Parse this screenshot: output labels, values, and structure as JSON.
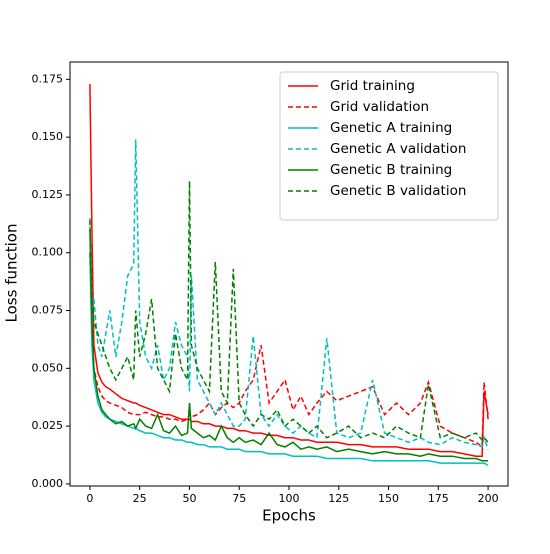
{
  "chart_data": {
    "type": "line",
    "x_label": "Epochs",
    "y_label": "Loss function",
    "x": [
      0,
      1,
      2,
      4,
      6,
      8,
      10,
      13,
      16,
      19,
      22,
      23,
      25,
      28,
      31,
      34,
      37,
      40,
      43,
      46,
      49,
      50,
      51,
      54,
      57,
      60,
      63,
      66,
      69,
      72,
      75,
      78,
      82,
      86,
      90,
      94,
      98,
      102,
      106,
      110,
      114,
      119,
      124,
      130,
      136,
      142,
      148,
      154,
      160,
      166,
      170,
      176,
      182,
      188,
      194,
      197,
      198,
      200
    ],
    "xlim": [
      -10,
      210
    ],
    "xticks": [
      0,
      25,
      50,
      75,
      100,
      125,
      150,
      175,
      200
    ],
    "ylim": [
      -0.0009,
      0.1825
    ],
    "yticks": [
      {
        "value": 0,
        "label": "0.000"
      },
      {
        "value": 0.025,
        "label": "0.025"
      },
      {
        "value": 0.05,
        "label": "0.050"
      },
      {
        "value": 0.075,
        "label": "0.075"
      },
      {
        "value": 0.1,
        "label": "0.100"
      },
      {
        "value": 0.125,
        "label": "0.125"
      },
      {
        "value": 0.15,
        "label": "0.150"
      },
      {
        "value": 0.175,
        "label": "0.175"
      }
    ],
    "legend": "upper right",
    "series": [
      {
        "name": "Grid training",
        "color": "#ff0000",
        "linestyle": "solid",
        "values": [
          0.173,
          0.11,
          0.06,
          0.048,
          0.044,
          0.042,
          0.041,
          0.039,
          0.037,
          0.036,
          0.035,
          0.035,
          0.034,
          0.033,
          0.032,
          0.031,
          0.03,
          0.03,
          0.029,
          0.028,
          0.028,
          0.028,
          0.027,
          0.027,
          0.026,
          0.026,
          0.025,
          0.025,
          0.024,
          0.024,
          0.023,
          0.023,
          0.022,
          0.022,
          0.021,
          0.021,
          0.02,
          0.02,
          0.019,
          0.019,
          0.018,
          0.018,
          0.018,
          0.017,
          0.017,
          0.016,
          0.016,
          0.016,
          0.015,
          0.015,
          0.015,
          0.014,
          0.014,
          0.013,
          0.012,
          0.012,
          0.04,
          0.03
        ]
      },
      {
        "name": "Grid validation",
        "color": "#ff0000",
        "linestyle": "dashed",
        "values": [
          0.1,
          0.07,
          0.05,
          0.042,
          0.038,
          0.036,
          0.035,
          0.034,
          0.033,
          0.031,
          0.03,
          0.03,
          0.03,
          0.031,
          0.03,
          0.029,
          0.029,
          0.028,
          0.028,
          0.027,
          0.028,
          0.03,
          0.029,
          0.03,
          0.032,
          0.035,
          0.03,
          0.033,
          0.035,
          0.033,
          0.035,
          0.04,
          0.045,
          0.06,
          0.035,
          0.04,
          0.045,
          0.032,
          0.038,
          0.03,
          0.035,
          0.04,
          0.036,
          0.038,
          0.04,
          0.042,
          0.03,
          0.035,
          0.03,
          0.035,
          0.044,
          0.025,
          0.022,
          0.02,
          0.018,
          0.016,
          0.044,
          0.028
        ]
      },
      {
        "name": "Genetic A training",
        "color": "#00bfbf",
        "linestyle": "solid",
        "values": [
          0.1,
          0.06,
          0.045,
          0.035,
          0.031,
          0.029,
          0.028,
          0.027,
          0.026,
          0.025,
          0.024,
          0.024,
          0.023,
          0.022,
          0.022,
          0.021,
          0.02,
          0.02,
          0.019,
          0.019,
          0.018,
          0.018,
          0.018,
          0.017,
          0.017,
          0.016,
          0.016,
          0.016,
          0.015,
          0.015,
          0.015,
          0.014,
          0.014,
          0.014,
          0.013,
          0.013,
          0.013,
          0.012,
          0.012,
          0.012,
          0.012,
          0.011,
          0.011,
          0.011,
          0.011,
          0.01,
          0.01,
          0.01,
          0.01,
          0.01,
          0.01,
          0.009,
          0.009,
          0.009,
          0.009,
          0.009,
          0.009,
          0.008
        ]
      },
      {
        "name": "Genetic A validation",
        "color": "#00bfbf",
        "linestyle": "dashed",
        "values": [
          0.115,
          0.075,
          0.08,
          0.06,
          0.055,
          0.065,
          0.075,
          0.055,
          0.07,
          0.09,
          0.095,
          0.149,
          0.07,
          0.055,
          0.05,
          0.06,
          0.045,
          0.05,
          0.07,
          0.06,
          0.055,
          0.04,
          0.09,
          0.045,
          0.04,
          0.035,
          0.03,
          0.035,
          0.03,
          0.025,
          0.025,
          0.028,
          0.064,
          0.03,
          0.025,
          0.03,
          0.025,
          0.022,
          0.025,
          0.022,
          0.02,
          0.063,
          0.022,
          0.02,
          0.022,
          0.045,
          0.022,
          0.02,
          0.018,
          0.02,
          0.018,
          0.017,
          0.02,
          0.018,
          0.017,
          0.016,
          0.02,
          0.015
        ]
      },
      {
        "name": "Genetic B training",
        "color": "#008000",
        "linestyle": "solid",
        "values": [
          0.11,
          0.07,
          0.05,
          0.038,
          0.032,
          0.03,
          0.028,
          0.026,
          0.027,
          0.025,
          0.026,
          0.024,
          0.028,
          0.025,
          0.024,
          0.03,
          0.023,
          0.022,
          0.025,
          0.021,
          0.022,
          0.035,
          0.024,
          0.022,
          0.02,
          0.021,
          0.019,
          0.025,
          0.02,
          0.018,
          0.02,
          0.018,
          0.019,
          0.017,
          0.022,
          0.017,
          0.016,
          0.018,
          0.015,
          0.016,
          0.015,
          0.016,
          0.014,
          0.015,
          0.014,
          0.013,
          0.014,
          0.013,
          0.013,
          0.012,
          0.013,
          0.012,
          0.012,
          0.011,
          0.011,
          0.01,
          0.01,
          0.01
        ]
      },
      {
        "name": "Genetic B validation",
        "color": "#008000",
        "linestyle": "dashed",
        "values": [
          0.114,
          0.08,
          0.07,
          0.065,
          0.06,
          0.055,
          0.05,
          0.045,
          0.05,
          0.055,
          0.045,
          0.075,
          0.055,
          0.065,
          0.08,
          0.05,
          0.045,
          0.04,
          0.065,
          0.05,
          0.045,
          0.131,
          0.06,
          0.05,
          0.045,
          0.04,
          0.096,
          0.04,
          0.035,
          0.093,
          0.035,
          0.03,
          0.025,
          0.03,
          0.028,
          0.032,
          0.025,
          0.028,
          0.025,
          0.022,
          0.025,
          0.02,
          0.022,
          0.025,
          0.02,
          0.022,
          0.02,
          0.025,
          0.022,
          0.02,
          0.043,
          0.02,
          0.022,
          0.02,
          0.022,
          0.019,
          0.02,
          0.018
        ]
      }
    ]
  }
}
